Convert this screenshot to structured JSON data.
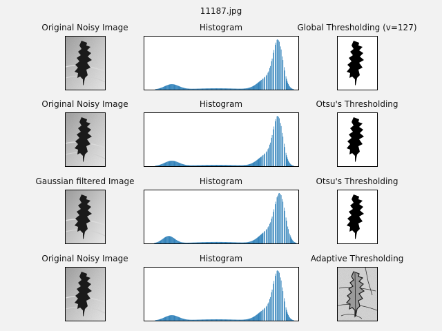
{
  "figure": {
    "title": "11187.jpg"
  },
  "rows": [
    {
      "left_title": "Original Noisy Image",
      "mid_title": "Histogram",
      "right_title": "Global Thresholding (v=127)",
      "right_kind": "binary"
    },
    {
      "left_title": "Original Noisy Image",
      "mid_title": "Histogram",
      "right_title": "Otsu's Thresholding",
      "right_kind": "binary"
    },
    {
      "left_title": "Gaussian filtered Image",
      "mid_title": "Histogram",
      "right_title": "Otsu's Thresholding",
      "right_kind": "binary"
    },
    {
      "left_title": "Original Noisy Image",
      "mid_title": "Histogram",
      "right_title": "Adaptive Thresholding",
      "right_kind": "adaptive"
    }
  ],
  "colors": {
    "bar": "#1f77b4",
    "background": "#f2f2f2",
    "leaf": "#1a1a1a"
  },
  "chart_data": [
    {
      "type": "bar",
      "title": "Histogram",
      "xlim": [
        0,
        256
      ],
      "grid": false,
      "variant": "noisy"
    },
    {
      "type": "bar",
      "title": "Histogram",
      "xlim": [
        0,
        256
      ],
      "grid": false,
      "variant": "noisy"
    },
    {
      "type": "bar",
      "title": "Histogram",
      "xlim": [
        0,
        256
      ],
      "grid": false,
      "variant": "filtered"
    },
    {
      "type": "bar",
      "title": "Histogram",
      "xlim": [
        0,
        256
      ],
      "grid": false,
      "variant": "noisy"
    }
  ]
}
